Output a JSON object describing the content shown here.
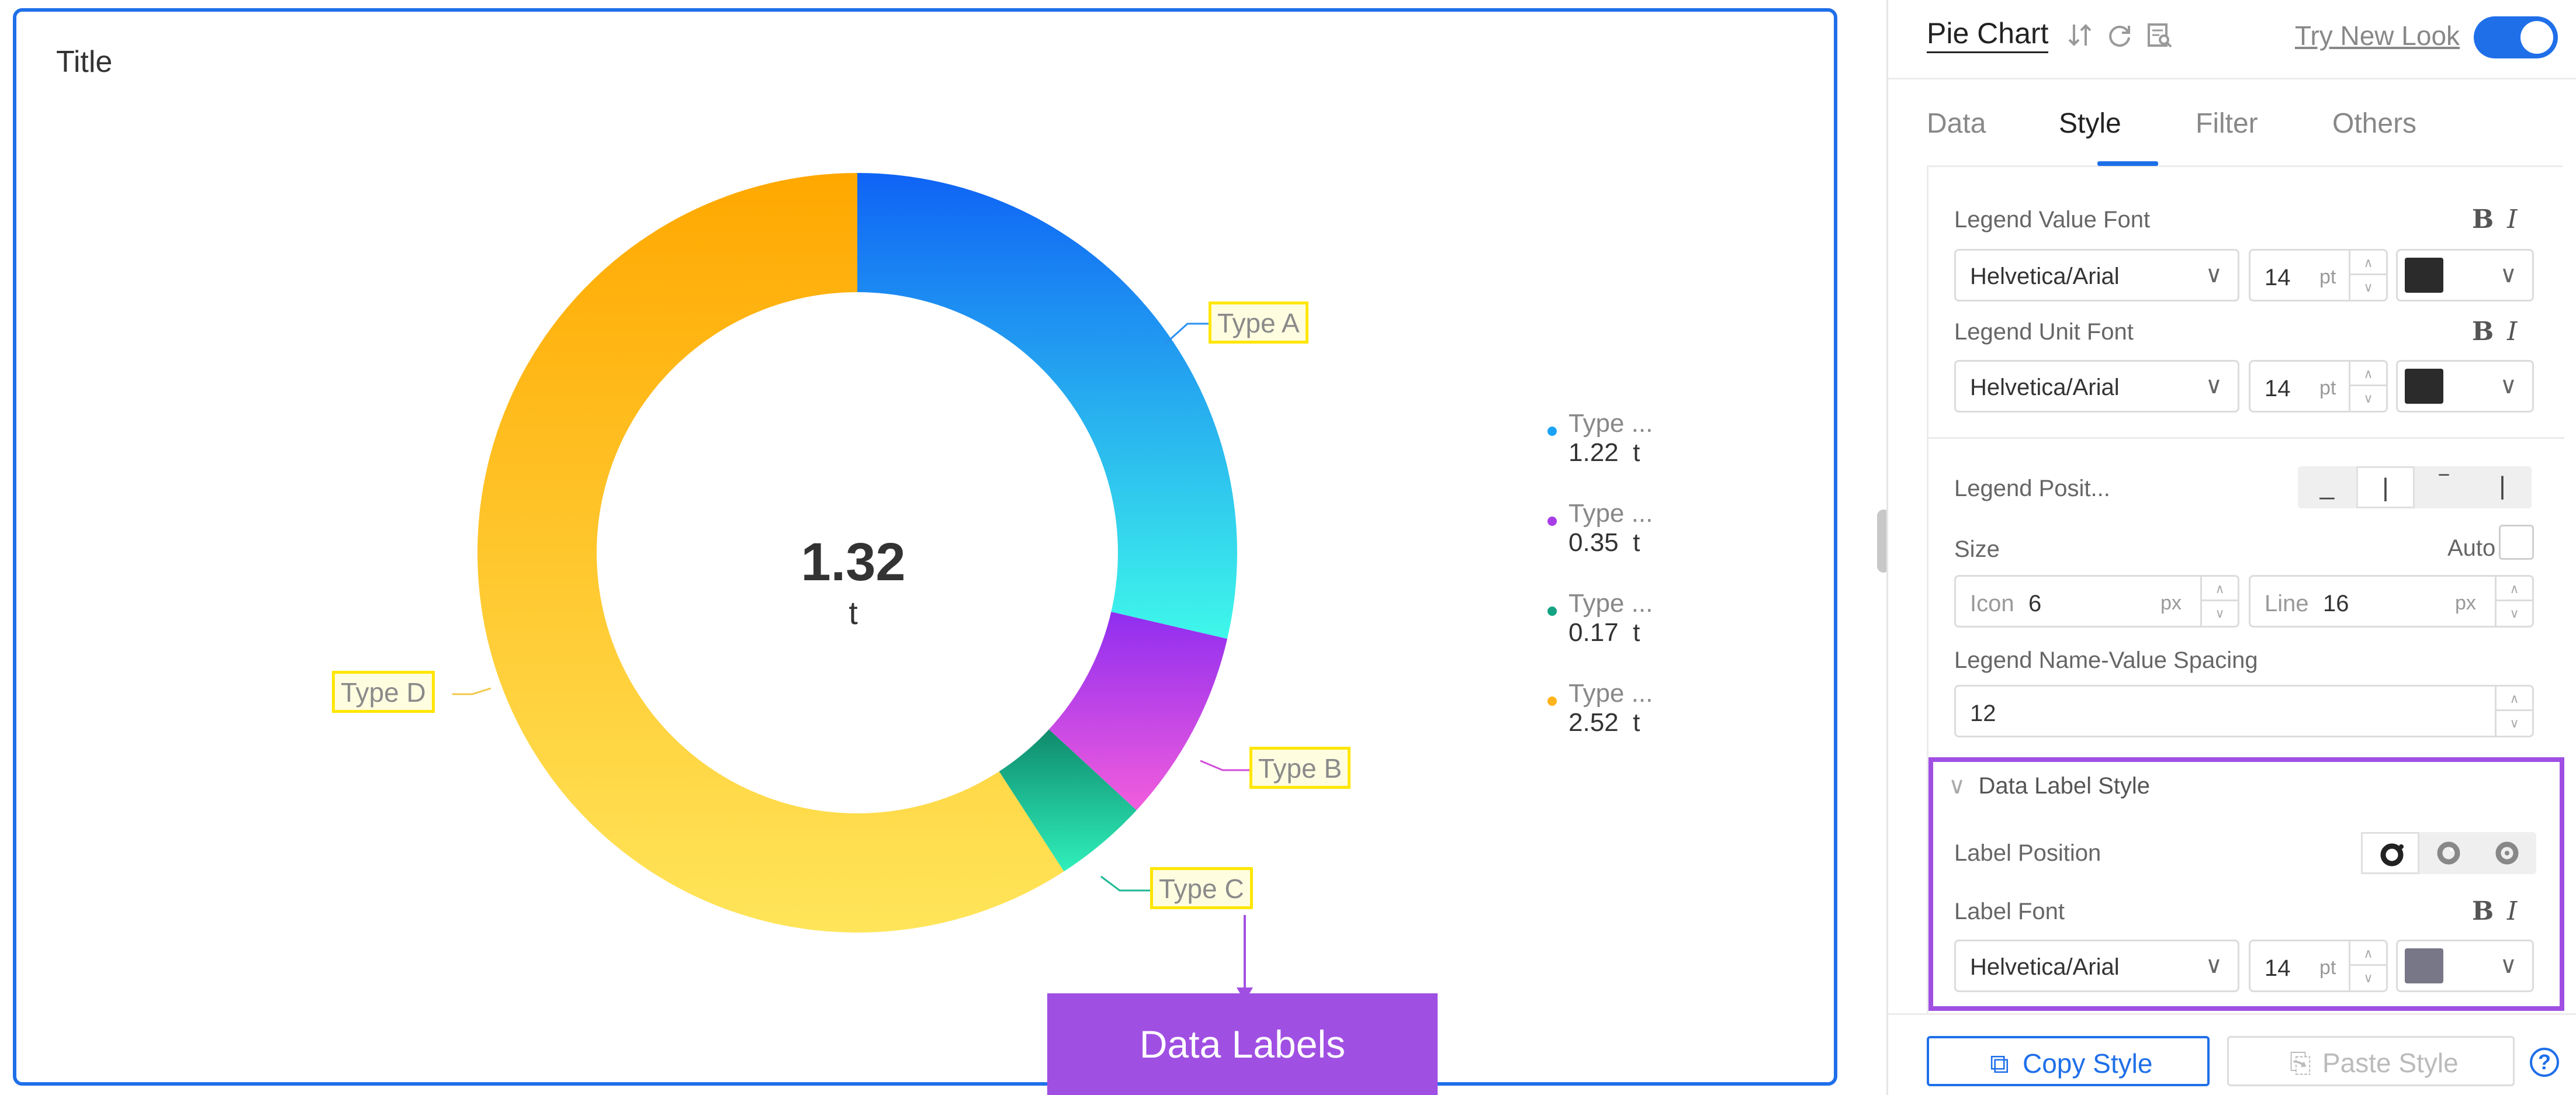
{
  "chart": {
    "title": "Title",
    "center_value": "1.32",
    "center_unit": "t",
    "callout": "Data Labels",
    "slice_labels": {
      "a": "Type A",
      "b": "Type B",
      "c": "Type C",
      "d": "Type D"
    },
    "legend": [
      {
        "name": "Type ...",
        "value": "1.22",
        "unit": "t",
        "color": "#1aa3f5"
      },
      {
        "name": "Type ...",
        "value": "0.35",
        "unit": "t",
        "color": "#a73de6"
      },
      {
        "name": "Type ...",
        "value": "0.17",
        "unit": "t",
        "color": "#14a383"
      },
      {
        "name": "Type ...",
        "value": "2.52",
        "unit": "t",
        "color": "#ffb41a"
      }
    ]
  },
  "chart_data": {
    "type": "pie",
    "categories": [
      "Type A",
      "Type B",
      "Type C",
      "Type D"
    ],
    "values": [
      1.22,
      0.35,
      0.17,
      2.52
    ],
    "unit": "t",
    "colors": [
      "#1aa3f5",
      "#a73de6",
      "#14a383",
      "#ffb41a"
    ],
    "donut": true,
    "legend_position": "right"
  },
  "panel": {
    "title": "Pie Chart",
    "try_new_look": "Try New Look",
    "toggle_on": true,
    "tabs": [
      "Data",
      "Style",
      "Filter",
      "Others"
    ],
    "active_tab": "Style",
    "legend_value_font": {
      "label": "Legend Value Font",
      "bold": "B",
      "italic": "I",
      "family": "Helvetica/Arial",
      "size": "14",
      "size_unit": "pt",
      "color": "#2b2b2b"
    },
    "legend_unit_font": {
      "label": "Legend Unit Font",
      "bold": "B",
      "italic": "I",
      "family": "Helvetica/Arial",
      "size": "14",
      "size_unit": "pt",
      "color": "#2b2b2b"
    },
    "legend_position": {
      "label": "Legend Posit...",
      "options": [
        "_",
        "|",
        "‾",
        "|"
      ]
    },
    "size": {
      "label": "Size",
      "auto_label": "Auto",
      "icon_label": "Icon",
      "icon_value": "6",
      "line_label": "Line",
      "line_value": "16",
      "unit": "px"
    },
    "spacing": {
      "label": "Legend Name-Value Spacing",
      "value": "12"
    },
    "data_label_style": {
      "heading": "Data Label Style",
      "position_label": "Label Position",
      "font_label": "Label Font",
      "bold": "B",
      "italic": "I",
      "family": "Helvetica/Arial",
      "size": "14",
      "size_unit": "pt",
      "color": "#777788"
    },
    "copy_style": "Copy Style",
    "paste_style": "Paste Style",
    "help": "?",
    "chevron": "∨",
    "spin_up": "∧",
    "spin_down": "∨",
    "copy_icon": "⧉",
    "paste_icon": "⎘"
  }
}
